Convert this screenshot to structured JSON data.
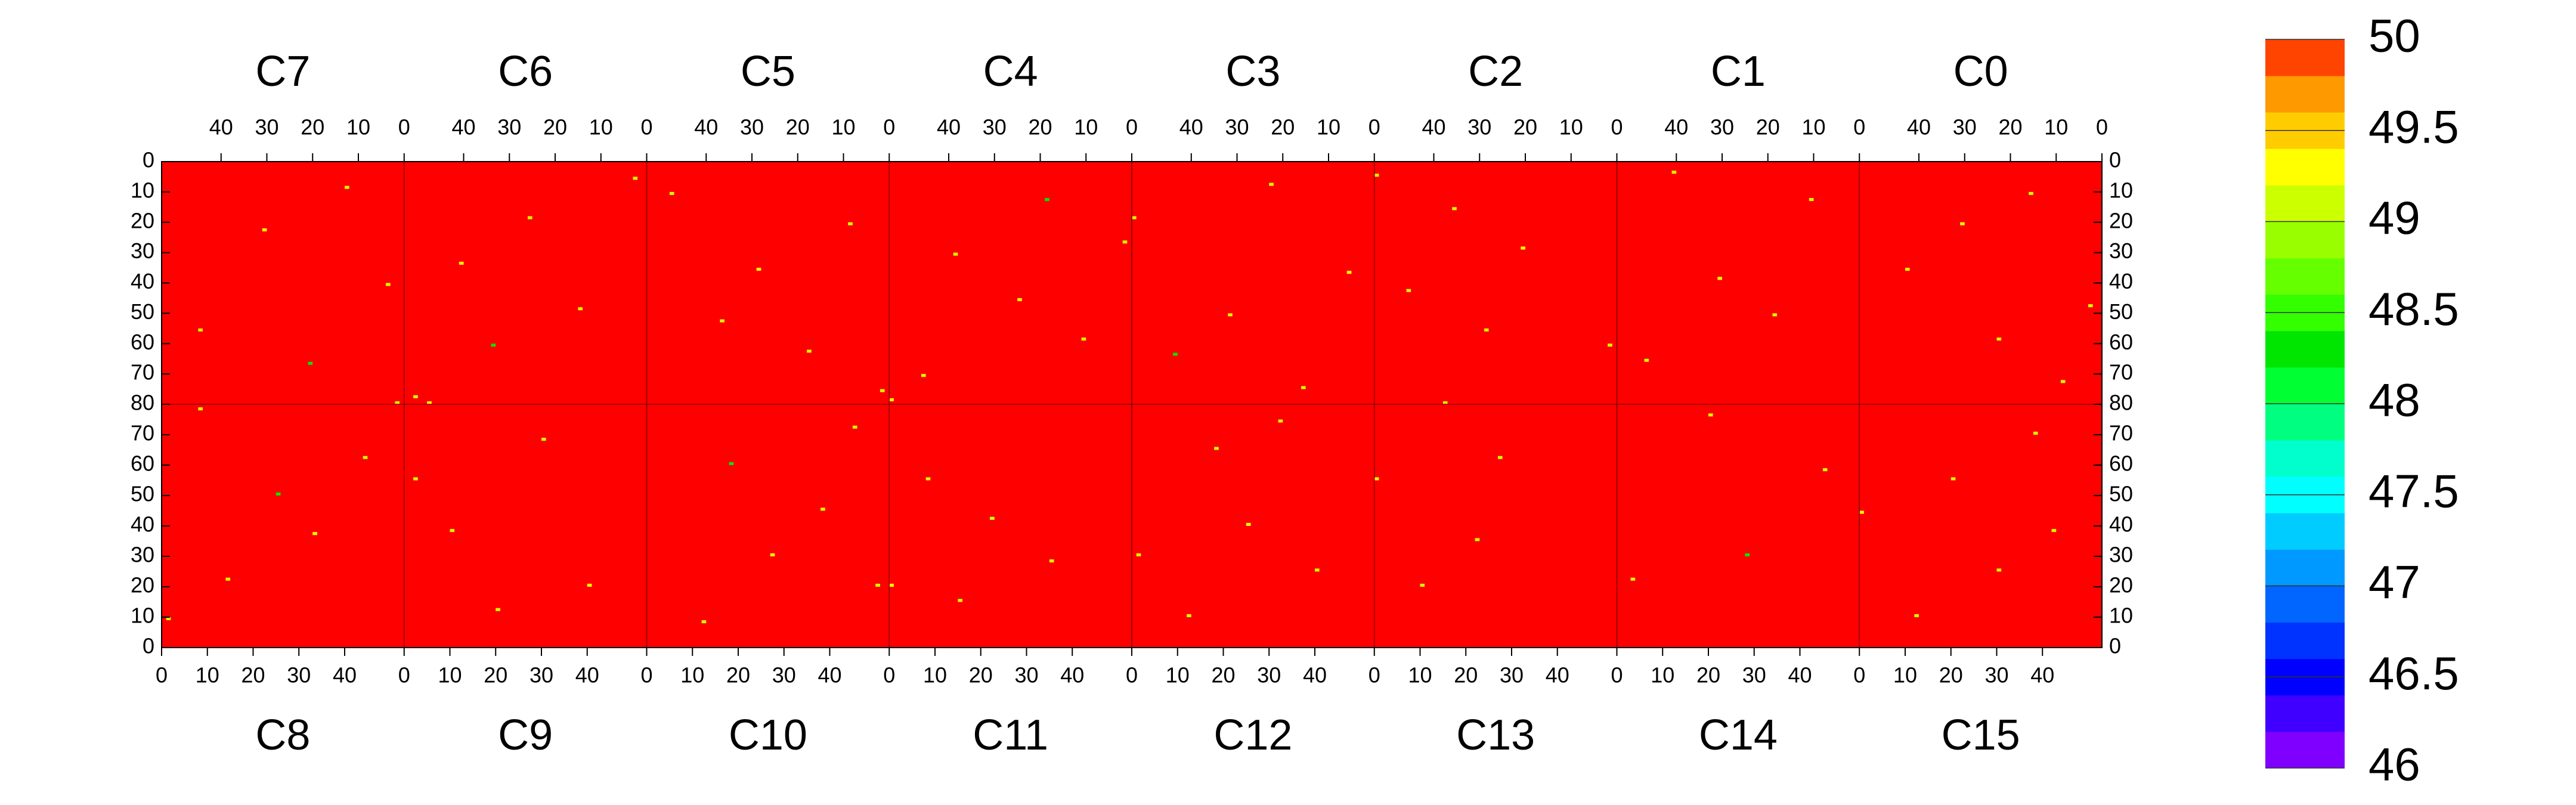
{
  "chart_data": {
    "type": "heatmap",
    "top_modules": [
      {
        "name": "C7",
        "cells": [
          {
            "x": 12,
            "y": 8,
            "value": 49.1
          },
          {
            "x": 30,
            "y": 22,
            "value": 49.3
          },
          {
            "x": 3,
            "y": 40,
            "value": 49.1
          },
          {
            "x": 44,
            "y": 55,
            "value": 49.1
          },
          {
            "x": 20,
            "y": 66,
            "value": 48.3
          },
          {
            "x": 1,
            "y": 79,
            "value": 49.1
          }
        ]
      },
      {
        "name": "C6",
        "cells": [
          {
            "x": 2,
            "y": 5,
            "value": 49.1
          },
          {
            "x": 25,
            "y": 18,
            "value": 49.1
          },
          {
            "x": 40,
            "y": 33,
            "value": 49.3
          },
          {
            "x": 14,
            "y": 48,
            "value": 49.1
          },
          {
            "x": 33,
            "y": 60,
            "value": 48.3
          },
          {
            "x": 50,
            "y": 77,
            "value": 49.1
          }
        ]
      },
      {
        "name": "C5",
        "cells": [
          {
            "x": 47,
            "y": 10,
            "value": 49.1
          },
          {
            "x": 8,
            "y": 20,
            "value": 49.1
          },
          {
            "x": 28,
            "y": 35,
            "value": 49.3
          },
          {
            "x": 36,
            "y": 52,
            "value": 49.1
          },
          {
            "x": 17,
            "y": 62,
            "value": 49.1
          },
          {
            "x": 1,
            "y": 75,
            "value": 49.1
          }
        ]
      },
      {
        "name": "C4",
        "cells": [
          {
            "x": 1,
            "y": 26,
            "value": 49.1
          },
          {
            "x": 18,
            "y": 12,
            "value": 48.3
          },
          {
            "x": 38,
            "y": 30,
            "value": 49.1
          },
          {
            "x": 24,
            "y": 45,
            "value": 49.3
          },
          {
            "x": 10,
            "y": 58,
            "value": 49.1
          },
          {
            "x": 45,
            "y": 70,
            "value": 49.1
          }
        ]
      },
      {
        "name": "C3",
        "cells": [
          {
            "x": 52,
            "y": 18,
            "value": 49.1
          },
          {
            "x": 22,
            "y": 7,
            "value": 49.1
          },
          {
            "x": 5,
            "y": 36,
            "value": 49.3
          },
          {
            "x": 31,
            "y": 50,
            "value": 49.1
          },
          {
            "x": 43,
            "y": 63,
            "value": 48.3
          },
          {
            "x": 15,
            "y": 74,
            "value": 49.1
          }
        ]
      },
      {
        "name": "C2",
        "cells": [
          {
            "x": 52,
            "y": 4,
            "value": 49.1
          },
          {
            "x": 35,
            "y": 15,
            "value": 49.1
          },
          {
            "x": 20,
            "y": 28,
            "value": 49.3
          },
          {
            "x": 45,
            "y": 42,
            "value": 49.1
          },
          {
            "x": 28,
            "y": 55,
            "value": 49.1
          },
          {
            "x": 1,
            "y": 60,
            "value": 49.1
          }
        ]
      },
      {
        "name": "C1",
        "cells": [
          {
            "x": 40,
            "y": 3,
            "value": 49.1
          },
          {
            "x": 10,
            "y": 12,
            "value": 49.1
          },
          {
            "x": 30,
            "y": 38,
            "value": 49.3
          },
          {
            "x": 18,
            "y": 50,
            "value": 49.1
          },
          {
            "x": 46,
            "y": 65,
            "value": 49.1
          }
        ]
      },
      {
        "name": "C0",
        "cells": [
          {
            "x": 2,
            "y": 47,
            "value": 49.1
          },
          {
            "x": 15,
            "y": 10,
            "value": 49.1
          },
          {
            "x": 30,
            "y": 20,
            "value": 49.3
          },
          {
            "x": 42,
            "y": 35,
            "value": 49.1
          },
          {
            "x": 22,
            "y": 58,
            "value": 49.1
          },
          {
            "x": 8,
            "y": 72,
            "value": 49.1
          }
        ]
      }
    ],
    "bottom_modules": [
      {
        "name": "C8",
        "cells": [
          {
            "x": 1,
            "y": 9,
            "value": 49.1
          },
          {
            "x": 14,
            "y": 22,
            "value": 49.1
          },
          {
            "x": 33,
            "y": 37,
            "value": 49.3
          },
          {
            "x": 25,
            "y": 50,
            "value": 48.3
          },
          {
            "x": 44,
            "y": 62,
            "value": 49.1
          },
          {
            "x": 8,
            "y": 78,
            "value": 49.1
          }
        ]
      },
      {
        "name": "C9",
        "cells": [
          {
            "x": 2,
            "y": 55,
            "value": 49.1
          },
          {
            "x": 20,
            "y": 12,
            "value": 49.1
          },
          {
            "x": 40,
            "y": 20,
            "value": 49.3
          },
          {
            "x": 10,
            "y": 38,
            "value": 49.1
          },
          {
            "x": 30,
            "y": 68,
            "value": 49.1
          },
          {
            "x": 5,
            "y": 80,
            "value": 49.3
          }
        ]
      },
      {
        "name": "C10",
        "cells": [
          {
            "x": 50,
            "y": 20,
            "value": 49.1
          },
          {
            "x": 12,
            "y": 8,
            "value": 49.1
          },
          {
            "x": 27,
            "y": 30,
            "value": 49.3
          },
          {
            "x": 38,
            "y": 45,
            "value": 49.1
          },
          {
            "x": 18,
            "y": 60,
            "value": 48.3
          },
          {
            "x": 45,
            "y": 72,
            "value": 49.1
          }
        ]
      },
      {
        "name": "C11",
        "cells": [
          {
            "x": 0,
            "y": 20,
            "value": 49.3
          },
          {
            "x": 15,
            "y": 15,
            "value": 49.1
          },
          {
            "x": 35,
            "y": 28,
            "value": 49.1
          },
          {
            "x": 22,
            "y": 42,
            "value": 49.1
          },
          {
            "x": 8,
            "y": 55,
            "value": 49.1
          },
          {
            "x": 0,
            "y": 81,
            "value": 49.3
          }
        ]
      },
      {
        "name": "C12",
        "cells": [
          {
            "x": 1,
            "y": 30,
            "value": 49.1
          },
          {
            "x": 12,
            "y": 10,
            "value": 49.1
          },
          {
            "x": 25,
            "y": 40,
            "value": 49.3
          },
          {
            "x": 40,
            "y": 25,
            "value": 49.1
          },
          {
            "x": 18,
            "y": 65,
            "value": 49.1
          },
          {
            "x": 32,
            "y": 74,
            "value": 49.1
          }
        ]
      },
      {
        "name": "C13",
        "cells": [
          {
            "x": 0,
            "y": 55,
            "value": 49.3
          },
          {
            "x": 10,
            "y": 20,
            "value": 49.1
          },
          {
            "x": 22,
            "y": 35,
            "value": 49.1
          },
          {
            "x": 15,
            "y": 80,
            "value": 49.1
          },
          {
            "x": 27,
            "y": 62,
            "value": 49.1
          }
        ]
      },
      {
        "name": "C14",
        "cells": [
          {
            "x": 3,
            "y": 22,
            "value": 49.1
          },
          {
            "x": 28,
            "y": 30,
            "value": 48.3
          },
          {
            "x": 45,
            "y": 58,
            "value": 49.1
          },
          {
            "x": 20,
            "y": 76,
            "value": 49.1
          }
        ]
      },
      {
        "name": "C15",
        "cells": [
          {
            "x": 0,
            "y": 44,
            "value": 49.3
          },
          {
            "x": 12,
            "y": 10,
            "value": 49.1
          },
          {
            "x": 30,
            "y": 25,
            "value": 49.1
          },
          {
            "x": 42,
            "y": 38,
            "value": 49.1
          },
          {
            "x": 20,
            "y": 55,
            "value": 49.1
          },
          {
            "x": 38,
            "y": 70,
            "value": 49.1
          }
        ]
      }
    ],
    "background": 50,
    "xlim": [
      0,
      53
    ],
    "xticks": [
      0,
      10,
      20,
      30,
      40
    ],
    "ylim": [
      0,
      80
    ],
    "yticks": [
      0,
      10,
      20,
      30,
      40,
      50,
      60,
      70,
      80
    ],
    "zlim": [
      46,
      50
    ],
    "zticks": [
      46,
      46.5,
      47,
      47.5,
      48,
      48.5,
      49,
      49.5,
      50
    ],
    "colors": [
      "#7f00ff",
      "#4000ff",
      "#0000ff",
      "#0033ff",
      "#0066ff",
      "#0099ff",
      "#00ccff",
      "#00ffff",
      "#00ffcc",
      "#00ff80",
      "#00ff33",
      "#00e600",
      "#33ff00",
      "#66ff00",
      "#99ff00",
      "#ccff00",
      "#ffff00",
      "#ffcc00",
      "#ff9900",
      "#ff4400",
      "#ff0000"
    ]
  }
}
